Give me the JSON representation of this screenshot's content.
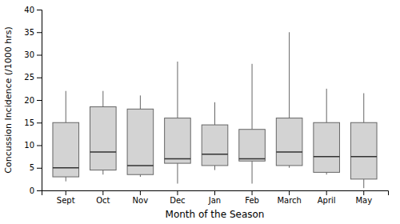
{
  "chart_data": {
    "type": "box",
    "xlabel": "Month of the Season",
    "ylabel": "Concussion Incidence (/1000 hrs)",
    "categories": [
      "Sept",
      "Oct",
      "Nov",
      "Dec",
      "Jan",
      "Feb",
      "March",
      "April",
      "May"
    ],
    "values": [
      {
        "min": 2.0,
        "q1": 3.0,
        "median": 5.0,
        "q3": 15.0,
        "max": 22.0
      },
      {
        "min": 3.5,
        "q1": 4.5,
        "median": 8.5,
        "q3": 18.5,
        "max": 22.0
      },
      {
        "min": 3.0,
        "q1": 3.5,
        "median": 5.5,
        "q3": 18.0,
        "max": 21.0
      },
      {
        "min": 1.5,
        "q1": 6.0,
        "median": 7.0,
        "q3": 16.0,
        "max": 28.5
      },
      {
        "min": 4.5,
        "q1": 5.5,
        "median": 8.0,
        "q3": 14.5,
        "max": 19.5
      },
      {
        "min": 1.5,
        "q1": 6.5,
        "median": 7.0,
        "q3": 13.5,
        "max": 28.0
      },
      {
        "min": 5.0,
        "q1": 5.5,
        "median": 8.5,
        "q3": 16.0,
        "max": 35.0
      },
      {
        "min": 3.5,
        "q1": 4.0,
        "median": 7.5,
        "q3": 15.0,
        "max": 22.5
      },
      {
        "min": 0.5,
        "q1": 2.5,
        "median": 7.5,
        "q3": 15.0,
        "max": 21.5
      }
    ],
    "color": "#d3d3d3",
    "ylim": [
      0,
      40
    ],
    "yticks": [
      0,
      5,
      10,
      15,
      20,
      25,
      30,
      35,
      40
    ],
    "grid": false
  }
}
